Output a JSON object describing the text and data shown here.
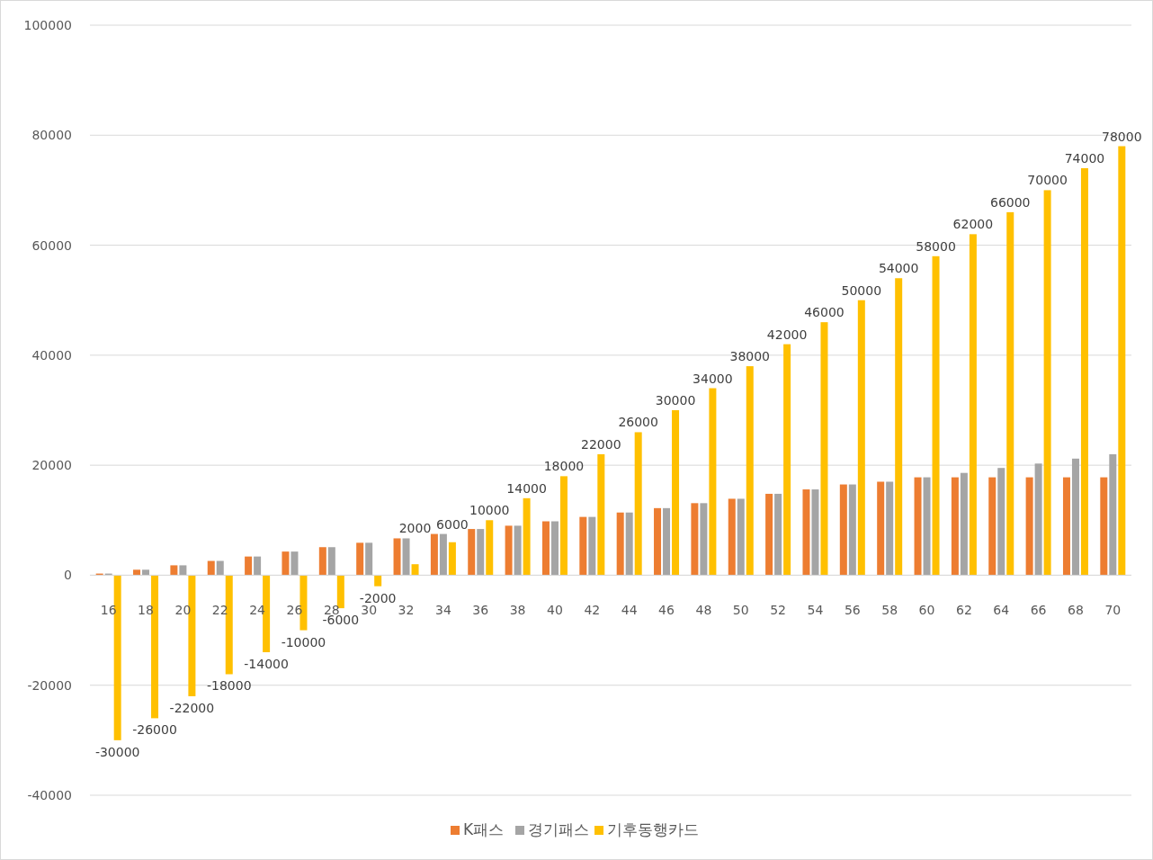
{
  "chart_data": {
    "type": "bar",
    "categories": [
      "16",
      "18",
      "20",
      "22",
      "24",
      "26",
      "28",
      "30",
      "32",
      "34",
      "36",
      "38",
      "40",
      "42",
      "44",
      "46",
      "48",
      "50",
      "52",
      "54",
      "56",
      "58",
      "60",
      "62",
      "64",
      "66",
      "68",
      "70"
    ],
    "series": [
      {
        "name": "K패스",
        "color": "#ed7d31",
        "values": [
          300,
          1000,
          1800,
          2600,
          3400,
          4300,
          5100,
          5900,
          6700,
          7500,
          8400,
          9000,
          9800,
          10600,
          11400,
          12200,
          13100,
          13900,
          14800,
          15600,
          16500,
          17000,
          17800,
          17800,
          17800,
          17800,
          17800,
          17800
        ]
      },
      {
        "name": "경기패스",
        "color": "#a5a5a5",
        "values": [
          300,
          1000,
          1800,
          2600,
          3400,
          4300,
          5100,
          5900,
          6700,
          7500,
          8400,
          9000,
          9800,
          10600,
          11400,
          12200,
          13100,
          13900,
          14800,
          15600,
          16500,
          17000,
          17800,
          18600,
          19500,
          20300,
          21200,
          22000
        ]
      },
      {
        "name": "기후동행카드",
        "color": "#ffc000",
        "values": [
          -30000,
          -26000,
          -22000,
          -18000,
          -14000,
          -10000,
          -6000,
          -2000,
          2000,
          6000,
          10000,
          14000,
          18000,
          22000,
          26000,
          30000,
          34000,
          38000,
          42000,
          46000,
          50000,
          54000,
          58000,
          62000,
          66000,
          70000,
          74000,
          78000
        ],
        "value_labels": [
          "-30000",
          "-26000",
          "-22000",
          "-18000",
          "-14000",
          "-10000",
          "-6000",
          "-2000",
          "2000",
          "6000",
          "10000",
          "14000",
          "18000",
          "22000",
          "26000",
          "30000",
          "34000",
          "38000",
          "42000",
          "46000",
          "50000",
          "54000",
          "58000",
          "62000",
          "66000",
          "70000",
          "74000",
          "78000"
        ]
      }
    ],
    "ylim": [
      -40000,
      100000
    ],
    "yticks": [
      -40000,
      -20000,
      0,
      20000,
      40000,
      60000,
      80000,
      100000
    ],
    "grid": "y",
    "legend": "bottom"
  }
}
